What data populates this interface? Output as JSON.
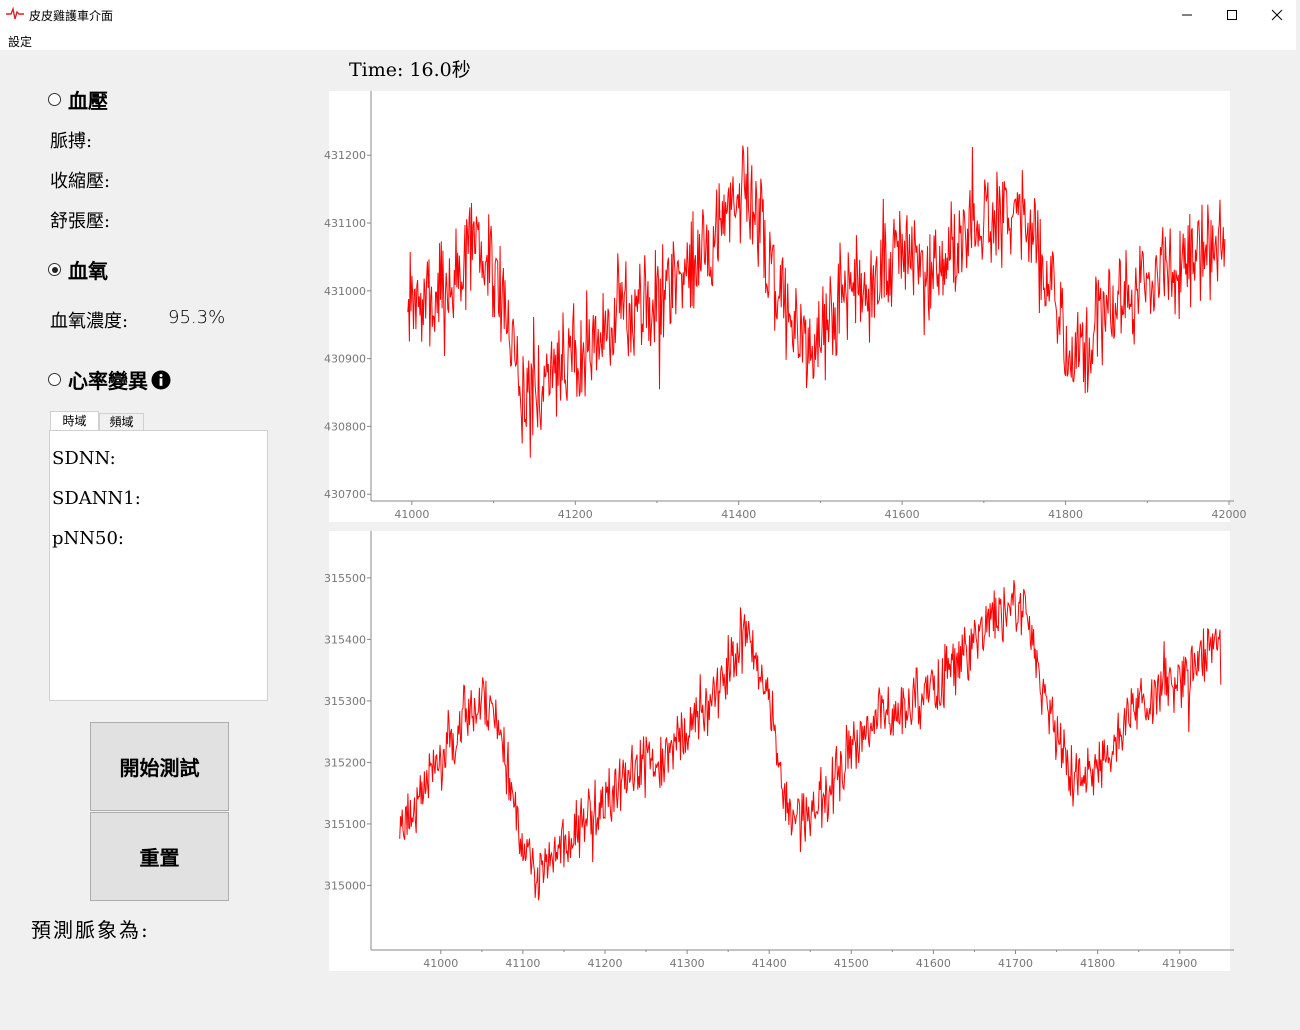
{
  "window": {
    "title": "皮皮雞護車介面",
    "icon": "pulse-wave-icon",
    "controls": [
      "minimize-icon",
      "maximize-icon",
      "close-icon"
    ]
  },
  "menu": {
    "settings": "設定"
  },
  "time_label": "Time: 16.0秒",
  "blood_pressure": {
    "radio_label": "血壓",
    "checked": false,
    "pulse_label": "脈搏:",
    "systolic_label": "收縮壓:",
    "diastolic_label": "舒張壓:"
  },
  "spo2": {
    "radio_label": "血氧",
    "checked": true,
    "concentration_label": "血氧濃度:",
    "concentration_value": "95.3%"
  },
  "hrv": {
    "radio_label": "心率變異",
    "checked": false,
    "info_icon": "info-icon",
    "tabs": [
      "時域",
      "頻域"
    ],
    "active_tab": 0,
    "sdnn_label": "SDNN:",
    "sdann_label": "SDANN1:",
    "pnn50_label": "pNN50:"
  },
  "buttons": {
    "start": "開始測試",
    "reset": "重置"
  },
  "prediction_label": "預測脈象為:",
  "colors": {
    "signal": "#ff0000",
    "axis": "#888888",
    "window_bg": "#f0f0f0"
  },
  "chart_data": [
    {
      "type": "line",
      "xlim": [
        40950,
        42000
      ],
      "ylim": [
        430690,
        431280
      ],
      "x_ticks": [
        41000,
        41200,
        41400,
        41600,
        41800,
        42000
      ],
      "y_ticks": [
        430700,
        430800,
        430900,
        431000,
        431100,
        431200
      ],
      "grid": false,
      "series": [
        {
          "color": "#ff0000",
          "x_range": [
            40995,
            41995
          ],
          "trend": [
            [
              40995,
              430970
            ],
            [
              41040,
              430990
            ],
            [
              41080,
              431080
            ],
            [
              41110,
              431000
            ],
            [
              41140,
              430820
            ],
            [
              41170,
              430880
            ],
            [
              41230,
              430930
            ],
            [
              41300,
              430990
            ],
            [
              41370,
              431080
            ],
            [
              41410,
              431160
            ],
            [
              41450,
              430990
            ],
            [
              41490,
              430910
            ],
            [
              41530,
              431000
            ],
            [
              41600,
              431060
            ],
            [
              41640,
              431020
            ],
            [
              41680,
              431090
            ],
            [
              41720,
              431110
            ],
            [
              41750,
              431130
            ],
            [
              41780,
              431000
            ],
            [
              41810,
              430900
            ],
            [
              41850,
              430970
            ],
            [
              41900,
              431010
            ],
            [
              41950,
              431040
            ],
            [
              41995,
              431070
            ]
          ],
          "noise_amplitude": 70
        }
      ]
    },
    {
      "type": "line",
      "xlim": [
        40915,
        41960
      ],
      "ylim": [
        314895,
        315560
      ],
      "x_ticks": [
        41000,
        41100,
        41200,
        41300,
        41400,
        41500,
        41600,
        41700,
        41800,
        41900
      ],
      "y_ticks": [
        315000,
        315100,
        315200,
        315300,
        315400,
        315500
      ],
      "grid": false,
      "series": [
        {
          "color": "#ff0000",
          "x_range": [
            40950,
            41950
          ],
          "trend": [
            [
              40950,
              315100
            ],
            [
              40990,
              315180
            ],
            [
              41030,
              315280
            ],
            [
              41060,
              315300
            ],
            [
              41080,
              315200
            ],
            [
              41100,
              315060
            ],
            [
              41120,
              315020
            ],
            [
              41160,
              315080
            ],
            [
              41220,
              315170
            ],
            [
              41280,
              315220
            ],
            [
              41330,
              315300
            ],
            [
              41370,
              315410
            ],
            [
              41400,
              315320
            ],
            [
              41420,
              315130
            ],
            [
              41460,
              315120
            ],
            [
              41490,
              315200
            ],
            [
              41530,
              315270
            ],
            [
              41580,
              315300
            ],
            [
              41640,
              315380
            ],
            [
              41690,
              315460
            ],
            [
              41715,
              315440
            ],
            [
              41740,
              315270
            ],
            [
              41770,
              315180
            ],
            [
              41800,
              315190
            ],
            [
              41840,
              315280
            ],
            [
              41880,
              315320
            ],
            [
              41920,
              315360
            ],
            [
              41950,
              315410
            ]
          ],
          "noise_amplitude": 45
        }
      ]
    }
  ]
}
